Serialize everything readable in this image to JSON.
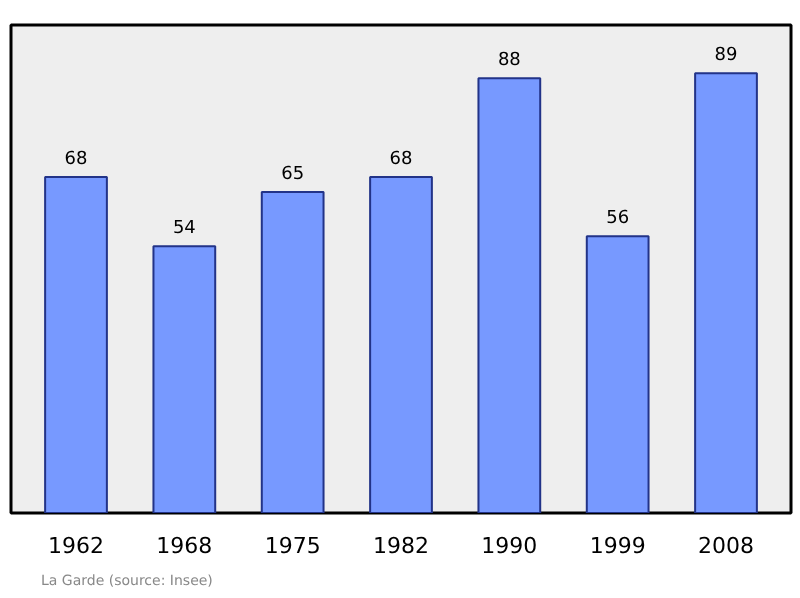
{
  "chart_data": {
    "type": "bar",
    "categories": [
      "1962",
      "1968",
      "1975",
      "1982",
      "1990",
      "1999",
      "2008"
    ],
    "values": [
      68,
      54,
      65,
      68,
      88,
      56,
      89
    ],
    "color": "#7799ff",
    "data_labels": true,
    "grid": false,
    "annotations": [
      "La Garde    (source: Insee)"
    ]
  }
}
